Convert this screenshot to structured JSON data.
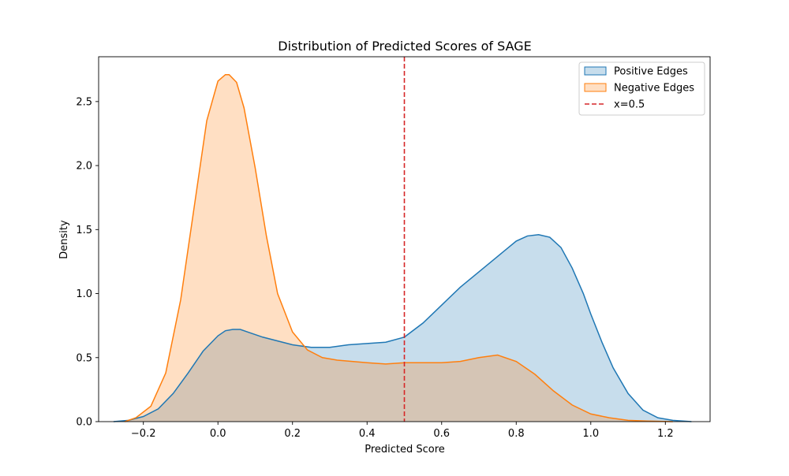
{
  "chart_data": {
    "type": "area",
    "title": "Distribution of Predicted Scores of SAGE",
    "xlabel": "Predicted Score",
    "ylabel": "Density",
    "xlim": [
      -0.32,
      1.32
    ],
    "ylim": [
      0,
      2.85
    ],
    "xticks": [
      -0.2,
      0.0,
      0.2,
      0.4,
      0.6,
      0.8,
      1.0,
      1.2
    ],
    "yticks": [
      0.0,
      0.5,
      1.0,
      1.5,
      2.0,
      2.5
    ],
    "xtick_labels": [
      "−0.2",
      "0.0",
      "0.2",
      "0.4",
      "0.6",
      "0.8",
      "1.0",
      "1.2"
    ],
    "ytick_labels": [
      "0.0",
      "0.5",
      "1.0",
      "1.5",
      "2.0",
      "2.5"
    ],
    "grid": false,
    "legend_position": "top-right",
    "series": [
      {
        "name": "Positive Edges",
        "color": "#1f77b4",
        "fill": "#c6dbef",
        "x": [
          -0.28,
          -0.24,
          -0.2,
          -0.16,
          -0.12,
          -0.08,
          -0.04,
          0.0,
          0.02,
          0.04,
          0.06,
          0.08,
          0.1,
          0.12,
          0.16,
          0.2,
          0.25,
          0.3,
          0.35,
          0.4,
          0.45,
          0.5,
          0.55,
          0.6,
          0.65,
          0.7,
          0.75,
          0.8,
          0.83,
          0.86,
          0.89,
          0.92,
          0.95,
          0.98,
          1.0,
          1.03,
          1.06,
          1.1,
          1.14,
          1.18,
          1.22,
          1.27
        ],
        "y": [
          0.0,
          0.01,
          0.04,
          0.1,
          0.22,
          0.38,
          0.55,
          0.67,
          0.71,
          0.72,
          0.72,
          0.7,
          0.68,
          0.66,
          0.63,
          0.6,
          0.58,
          0.58,
          0.6,
          0.61,
          0.62,
          0.66,
          0.77,
          0.91,
          1.05,
          1.17,
          1.29,
          1.41,
          1.45,
          1.46,
          1.44,
          1.36,
          1.2,
          1.0,
          0.84,
          0.62,
          0.42,
          0.22,
          0.09,
          0.03,
          0.01,
          0.0
        ]
      },
      {
        "name": "Negative Edges",
        "color": "#ff7f0e",
        "fill": "#fdd0a2",
        "x": [
          -0.25,
          -0.22,
          -0.18,
          -0.14,
          -0.1,
          -0.06,
          -0.03,
          0.0,
          0.02,
          0.03,
          0.05,
          0.07,
          0.1,
          0.13,
          0.16,
          0.2,
          0.24,
          0.28,
          0.32,
          0.36,
          0.4,
          0.45,
          0.5,
          0.55,
          0.6,
          0.65,
          0.7,
          0.75,
          0.8,
          0.85,
          0.9,
          0.95,
          1.0,
          1.05,
          1.1,
          1.15,
          1.22
        ],
        "y": [
          0.0,
          0.03,
          0.12,
          0.38,
          0.95,
          1.75,
          2.35,
          2.66,
          2.71,
          2.71,
          2.65,
          2.45,
          1.98,
          1.45,
          1.0,
          0.7,
          0.56,
          0.5,
          0.48,
          0.47,
          0.46,
          0.45,
          0.46,
          0.46,
          0.46,
          0.47,
          0.5,
          0.52,
          0.47,
          0.37,
          0.24,
          0.13,
          0.06,
          0.03,
          0.01,
          0.005,
          0.0
        ]
      }
    ],
    "reference_line": {
      "label": "x=0.5",
      "x": 0.5,
      "color": "#d62728",
      "style": "dashed"
    }
  }
}
